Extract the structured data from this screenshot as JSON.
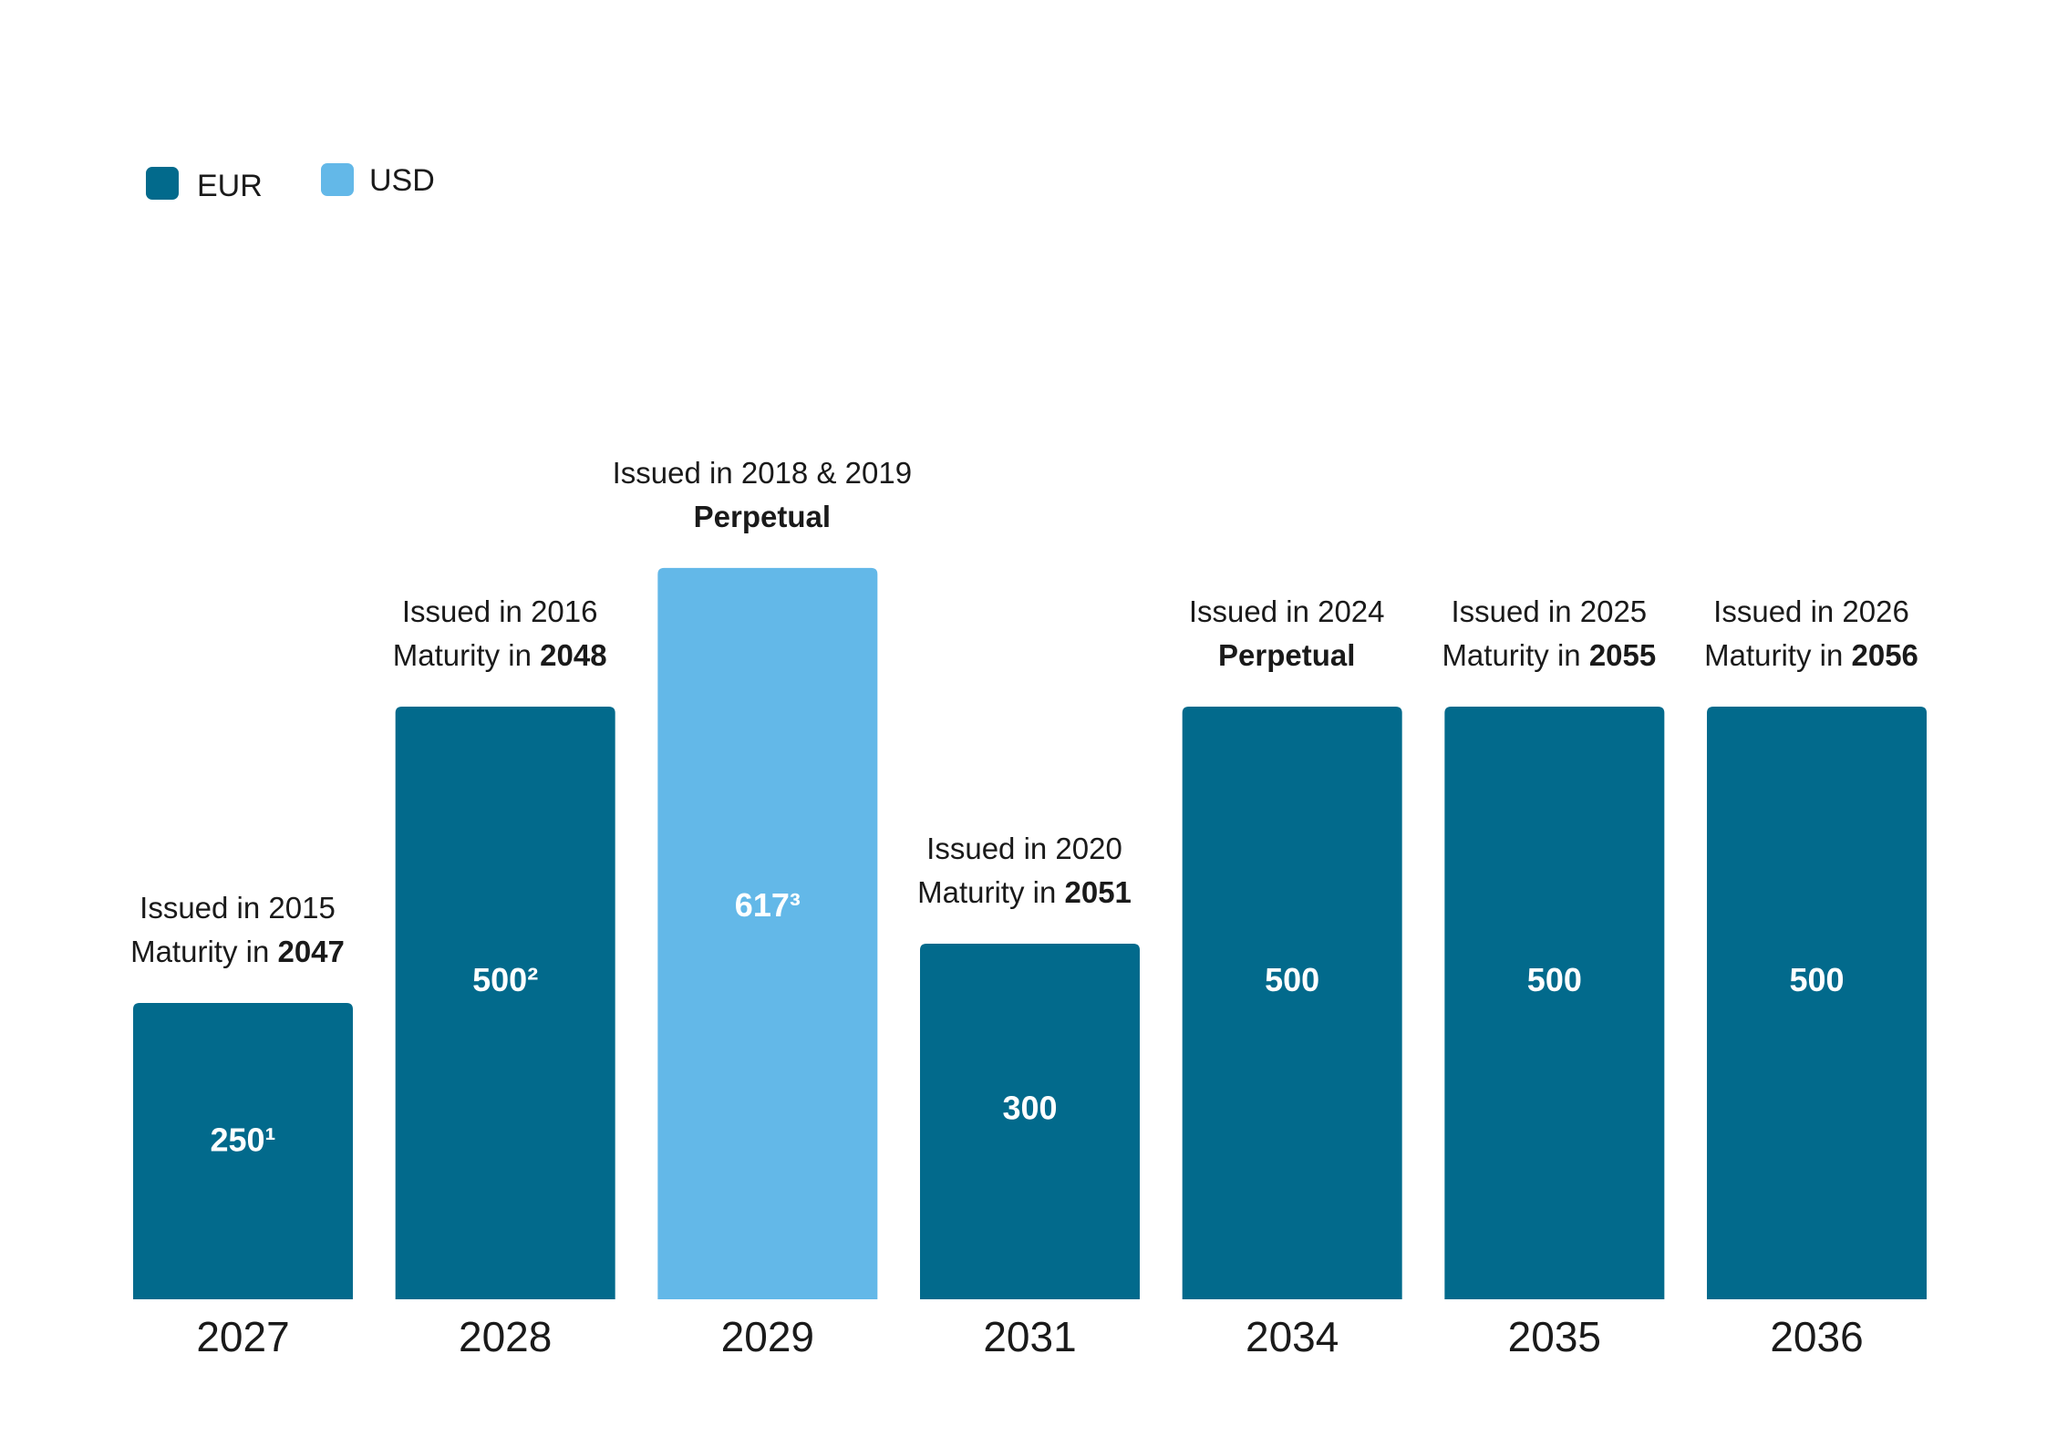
{
  "chart_data": {
    "type": "bar",
    "title": "",
    "xlabel": "",
    "ylabel": "",
    "ylim": [
      0,
      700
    ],
    "grid": false,
    "legend_position": "top-left",
    "legend": [
      {
        "name": "EUR",
        "color": "#026a8c"
      },
      {
        "name": "USD",
        "color": "#63b8e8"
      }
    ],
    "categories": [
      "2027",
      "2028",
      "2029",
      "2031",
      "2034",
      "2035",
      "2036"
    ],
    "bars": [
      {
        "category": "2027",
        "value": 250,
        "currency": "EUR",
        "label": "250¹",
        "issued": "Issued in 2015",
        "maturity_prefix": "Maturity in ",
        "maturity_value": "2047"
      },
      {
        "category": "2028",
        "value": 500,
        "currency": "EUR",
        "label": "500²",
        "issued": "Issued in 2016",
        "maturity_prefix": "Maturity in ",
        "maturity_value": "2048"
      },
      {
        "category": "2029",
        "value": 617,
        "currency": "USD",
        "label": "617³",
        "issued": "Issued in 2018 & 2019",
        "maturity_prefix": "",
        "maturity_value": "Perpetual"
      },
      {
        "category": "2031",
        "value": 300,
        "currency": "EUR",
        "label": "300",
        "issued": "Issued in 2020",
        "maturity_prefix": "Maturity in ",
        "maturity_value": "2051"
      },
      {
        "category": "2034",
        "value": 500,
        "currency": "EUR",
        "label": "500",
        "issued": "Issued in 2024",
        "maturity_prefix": "",
        "maturity_value": "Perpetual"
      },
      {
        "category": "2035",
        "value": 500,
        "currency": "EUR",
        "label": "500",
        "issued": "Issued in 2025",
        "maturity_prefix": "Maturity in ",
        "maturity_value": "2055"
      },
      {
        "category": "2036",
        "value": 500,
        "currency": "EUR",
        "label": "500",
        "issued": "Issued in 2026",
        "maturity_prefix": "Maturity in ",
        "maturity_value": "2056"
      }
    ]
  }
}
